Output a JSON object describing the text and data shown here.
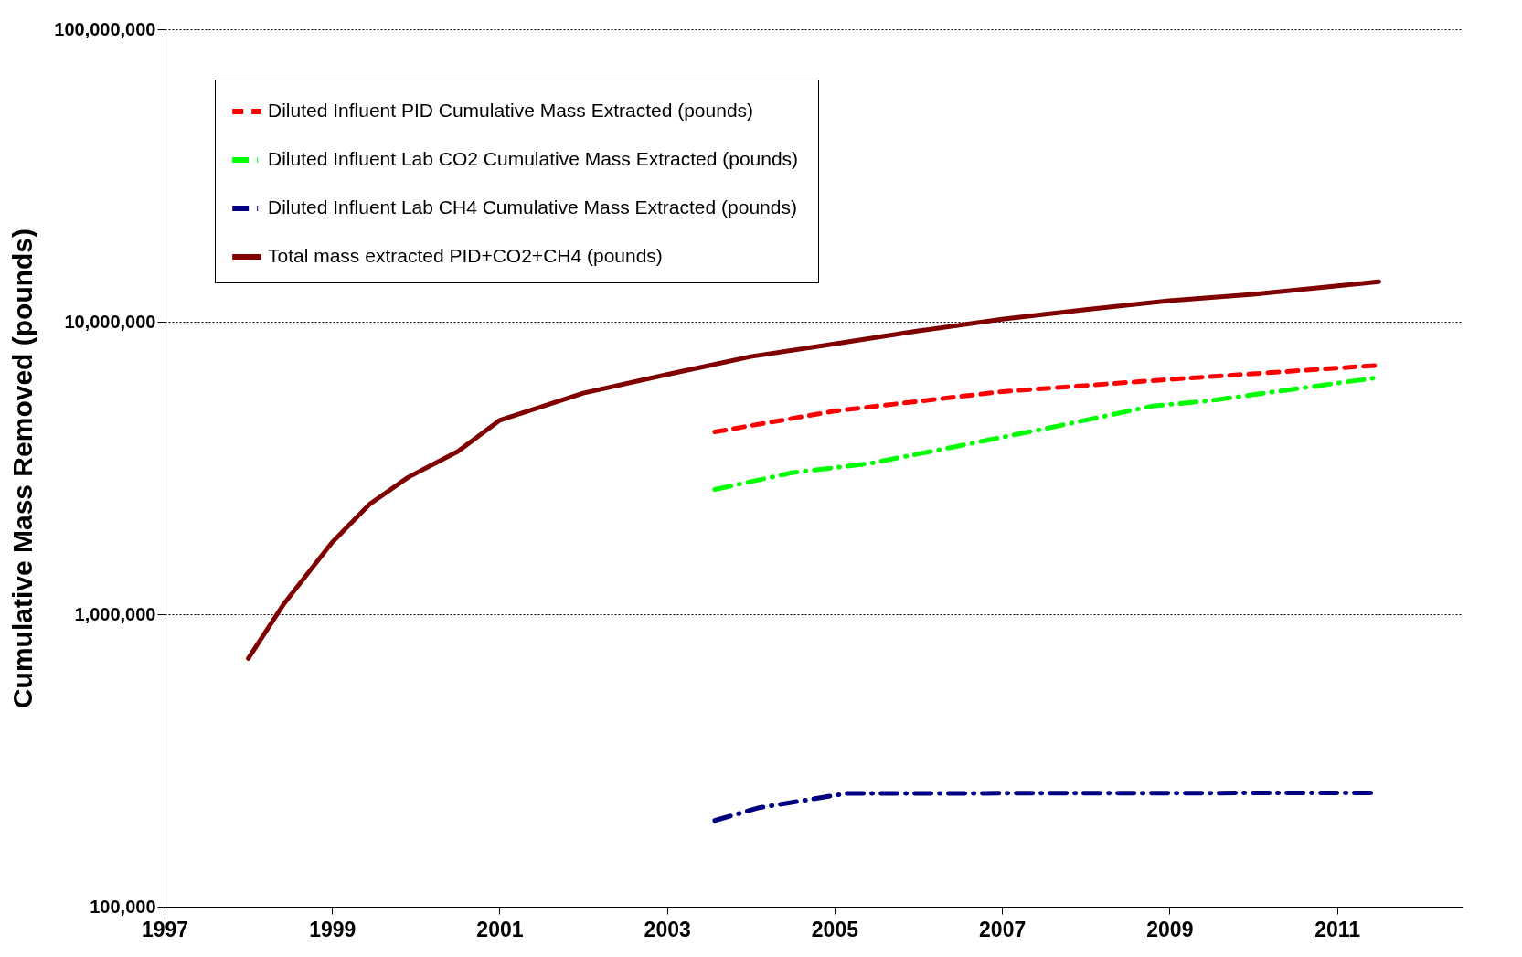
{
  "chart_data": {
    "type": "line",
    "ylabel": "Cumulative Mass Removed (pounds)",
    "log": true,
    "grid": "y",
    "legend": "top left",
    "xlim": [
      1997,
      2012.5
    ],
    "xticks": [
      1997,
      1999,
      2001,
      2003,
      2005,
      2007,
      2009,
      2011
    ],
    "ylim": [
      100000,
      100000000
    ],
    "yticks": [
      {
        "value": 100000,
        "label": "100,000"
      },
      {
        "value": 1000000,
        "label": "1,000,000"
      },
      {
        "value": 10000000,
        "label": "10,000,000"
      },
      {
        "value": 100000000,
        "label": "100,000,000"
      }
    ],
    "series": [
      {
        "name": "Diluted Influent PID Cumulative Mass Extracted (pounds)",
        "color": "#ff0000",
        "line_style": "dashed",
        "x": [
          2003.57,
          2005,
          2007,
          2009,
          2011.5
        ],
        "values": [
          4200000,
          4950000,
          5770000,
          6350000,
          7100000
        ]
      },
      {
        "name": "Diluted Influent Lab CO2 Cumulative Mass Extracted  (pounds)",
        "color": "#00ff00",
        "line_style": "dashdot",
        "x": [
          2003.57,
          2004.5,
          2005.4,
          2006.4,
          2007.5,
          2008.8,
          2009.5,
          2011.5
        ],
        "values": [
          2670000,
          3050000,
          3270000,
          3720000,
          4300000,
          5150000,
          5380000,
          6450000
        ]
      },
      {
        "name": "Diluted Influent Lab CH4 Cumulative Mass Extracted  (pounds)",
        "color": "#000080",
        "line_style": "dashdot",
        "x": [
          2003.57,
          2004.1,
          2005.15,
          2011.5
        ],
        "values": [
          197000,
          218000,
          244000,
          245000
        ]
      },
      {
        "name": "Total mass extracted  PID+CO2+CH4 (pounds)",
        "color": "#800000",
        "line_style": "solid",
        "x": [
          1998.0,
          1998.42,
          1999.0,
          1999.45,
          1999.91,
          2000.5,
          2001.0,
          2002.0,
          2003.0,
          2004.0,
          2005.0,
          2006.0,
          2007.0,
          2008.0,
          2009.0,
          2010.0,
          2011.5
        ],
        "values": [
          706000,
          1080000,
          1760000,
          2380000,
          2940000,
          3600000,
          4600000,
          5700000,
          6600000,
          7600000,
          8400000,
          9300000,
          10200000,
          11000000,
          11800000,
          12400000,
          13700000
        ]
      }
    ]
  }
}
